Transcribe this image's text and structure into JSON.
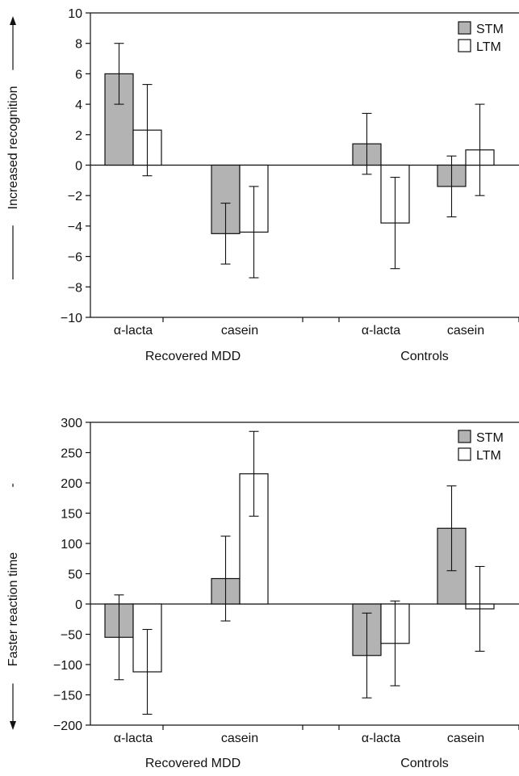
{
  "chart_data": [
    {
      "type": "bar",
      "ylabel": "Increased recognition",
      "ylim": [
        -10,
        10
      ],
      "yticks": [
        -10,
        -8,
        -6,
        -4,
        -2,
        0,
        2,
        4,
        6,
        8,
        10
      ],
      "groups": [
        "Recovered MDD",
        "Controls"
      ],
      "categories": [
        "α-lacta",
        "casein",
        "α-lacta",
        "casein"
      ],
      "series": [
        {
          "name": "STM",
          "color": "#b3b3b3",
          "values": [
            6.0,
            -4.5,
            1.4,
            -1.4
          ],
          "err_low": [
            4.0,
            -6.5,
            -0.6,
            -3.4
          ],
          "err_high": [
            8.0,
            -2.5,
            3.4,
            0.6
          ]
        },
        {
          "name": "LTM",
          "color": "#ffffff",
          "values": [
            2.3,
            -4.4,
            -3.8,
            1.0
          ],
          "err_low": [
            -0.7,
            -7.4,
            -6.8,
            -2.0
          ],
          "err_high": [
            5.3,
            -1.4,
            -0.8,
            4.0
          ]
        }
      ],
      "legend": "top-right",
      "arrow_direction": "up",
      "grid": false
    },
    {
      "type": "bar",
      "ylabel": "Faster reaction time",
      "ylim": [
        -200,
        300
      ],
      "yticks": [
        -200,
        -150,
        -100,
        -50,
        0,
        50,
        100,
        150,
        200,
        250,
        300
      ],
      "groups": [
        "Recovered MDD",
        "Controls"
      ],
      "categories": [
        "α-lacta",
        "casein",
        "α-lacta",
        "casein"
      ],
      "series": [
        {
          "name": "STM",
          "color": "#b3b3b3",
          "values": [
            -55,
            42,
            -85,
            125
          ],
          "err_low": [
            -125,
            -28,
            -155,
            55
          ],
          "err_high": [
            15,
            112,
            -15,
            195
          ]
        },
        {
          "name": "LTM",
          "color": "#ffffff",
          "values": [
            -112,
            215,
            -65,
            -8
          ],
          "err_low": [
            -182,
            145,
            -135,
            -78
          ],
          "err_high": [
            -42,
            285,
            5,
            62
          ]
        }
      ],
      "legend": "top-right",
      "arrow_direction": "down",
      "grid": false
    }
  ]
}
